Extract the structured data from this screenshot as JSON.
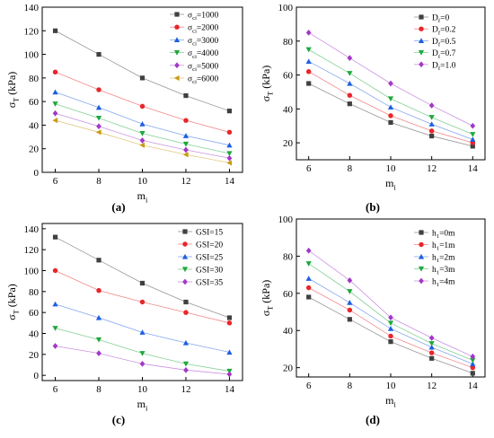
{
  "chart_data": [
    {
      "type": "line",
      "panel_label": "(a)",
      "xlabel": "m",
      "xlabel_sub": "i",
      "ylabel": "σ",
      "ylabel_sub": "T",
      "ylabel_unit": " (kPa)",
      "xlim": [
        5.4,
        14.6
      ],
      "ylim": [
        0,
        140
      ],
      "xticks": [
        6,
        8,
        10,
        12,
        14
      ],
      "yticks": [
        0,
        20,
        40,
        60,
        80,
        100,
        120,
        140
      ],
      "legend_position": "top-right",
      "x": [
        6,
        8,
        10,
        12,
        14
      ],
      "series": [
        {
          "name_main": "σ",
          "name_sub": "ci",
          "name_tail": "=1000",
          "color": "#404040",
          "marker": "square",
          "values": [
            120,
            100,
            80,
            65,
            52
          ]
        },
        {
          "name_main": "σ",
          "name_sub": "ci",
          "name_tail": "=2000",
          "color": "#e8262b",
          "marker": "circle",
          "values": [
            85,
            70,
            56,
            44,
            34
          ]
        },
        {
          "name_main": "σ",
          "name_sub": "ci",
          "name_tail": "=3000",
          "color": "#1e5fe0",
          "marker": "triangle-up",
          "values": [
            68,
            55,
            41,
            31,
            23
          ]
        },
        {
          "name_main": "σ",
          "name_sub": "ci",
          "name_tail": "=4000",
          "color": "#1ea83c",
          "marker": "triangle-down",
          "values": [
            58,
            46,
            33,
            24,
            16
          ]
        },
        {
          "name_main": "σ",
          "name_sub": "ci",
          "name_tail": "=5000",
          "color": "#a238c8",
          "marker": "diamond",
          "values": [
            50,
            39,
            27,
            19,
            12
          ]
        },
        {
          "name_main": "σ",
          "name_sub": "ci",
          "name_tail": "=6000",
          "color": "#c89a10",
          "marker": "triangle-left",
          "values": [
            44,
            34,
            23,
            15,
            8
          ]
        }
      ]
    },
    {
      "type": "line",
      "panel_label": "(b)",
      "xlabel": "m",
      "xlabel_sub": "i",
      "ylabel": "σ",
      "ylabel_sub": "T",
      "ylabel_unit": " (kPa)",
      "xlim": [
        5.4,
        14.6
      ],
      "ylim": [
        10,
        100
      ],
      "xticks": [
        6,
        8,
        10,
        12,
        14
      ],
      "yticks": [
        20,
        40,
        60,
        80,
        100
      ],
      "legend_position": "top-right",
      "x": [
        6,
        8,
        10,
        12,
        14
      ],
      "series": [
        {
          "name_main": "D",
          "name_sub": "f",
          "name_tail": "=0",
          "color": "#404040",
          "marker": "square",
          "values": [
            55,
            43,
            32,
            24,
            18
          ]
        },
        {
          "name_main": "D",
          "name_sub": "f",
          "name_tail": "=0.2",
          "color": "#e8262b",
          "marker": "circle",
          "values": [
            62,
            48,
            36,
            27,
            20
          ]
        },
        {
          "name_main": "D",
          "name_sub": "f",
          "name_tail": "=0.5",
          "color": "#1e5fe0",
          "marker": "triangle-up",
          "values": [
            68,
            55,
            41,
            31,
            22
          ]
        },
        {
          "name_main": "D",
          "name_sub": "f",
          "name_tail": "=0.7",
          "color": "#1ea83c",
          "marker": "triangle-down",
          "values": [
            75,
            61,
            46,
            35,
            25
          ]
        },
        {
          "name_main": "D",
          "name_sub": "f",
          "name_tail": "=1.0",
          "color": "#a238c8",
          "marker": "diamond",
          "values": [
            85,
            70,
            55,
            42,
            30
          ]
        }
      ]
    },
    {
      "type": "line",
      "panel_label": "(c)",
      "xlabel": "m",
      "xlabel_sub": "i",
      "ylabel": "σ",
      "ylabel_sub": "T",
      "ylabel_unit": " (kPa)",
      "xlim": [
        5.4,
        14.6
      ],
      "ylim": [
        -5,
        145
      ],
      "xticks": [
        6,
        8,
        10,
        12,
        14
      ],
      "yticks": [
        0,
        20,
        40,
        60,
        80,
        100,
        120,
        140
      ],
      "legend_position": "top-right",
      "x": [
        6,
        8,
        10,
        12,
        14
      ],
      "series": [
        {
          "name_main": "GSI=15",
          "name_sub": "",
          "name_tail": "",
          "color": "#404040",
          "marker": "square",
          "values": [
            132,
            110,
            88,
            70,
            55
          ]
        },
        {
          "name_main": "GSI=20",
          "name_sub": "",
          "name_tail": "",
          "color": "#e8262b",
          "marker": "circle",
          "values": [
            100,
            81,
            70,
            60,
            50
          ]
        },
        {
          "name_main": "GSI=25",
          "name_sub": "",
          "name_tail": "",
          "color": "#1e5fe0",
          "marker": "triangle-up",
          "values": [
            68,
            55,
            41,
            31,
            22
          ]
        },
        {
          "name_main": "GSI=30",
          "name_sub": "",
          "name_tail": "",
          "color": "#1ea83c",
          "marker": "triangle-down",
          "values": [
            45,
            34,
            21,
            11,
            4
          ]
        },
        {
          "name_main": "GSI=35",
          "name_sub": "",
          "name_tail": "",
          "color": "#a238c8",
          "marker": "diamond",
          "values": [
            28,
            21,
            11,
            5,
            1
          ]
        }
      ]
    },
    {
      "type": "line",
      "panel_label": "(d)",
      "xlabel": "m",
      "xlabel_sub": "i",
      "ylabel": "σ",
      "ylabel_sub": "T",
      "ylabel_unit": " (kPa)",
      "xlim": [
        5.4,
        14.6
      ],
      "ylim": [
        15,
        100
      ],
      "xticks": [
        6,
        8,
        10,
        12,
        14
      ],
      "yticks": [
        20,
        40,
        60,
        80,
        100
      ],
      "legend_position": "top-right",
      "x": [
        6,
        8,
        10,
        12,
        14
      ],
      "series": [
        {
          "name_main": "h",
          "name_sub": "1",
          "name_tail": "=0m",
          "color": "#404040",
          "marker": "square",
          "values": [
            58,
            46,
            34,
            25,
            17
          ]
        },
        {
          "name_main": "h",
          "name_sub": "1",
          "name_tail": "=1m",
          "color": "#e8262b",
          "marker": "circle",
          "values": [
            63,
            51,
            37,
            28,
            20
          ]
        },
        {
          "name_main": "h",
          "name_sub": "1",
          "name_tail": "=2m",
          "color": "#1e5fe0",
          "marker": "triangle-up",
          "values": [
            68,
            55,
            41,
            31,
            22
          ]
        },
        {
          "name_main": "h",
          "name_sub": "1",
          "name_tail": "=3m",
          "color": "#1ea83c",
          "marker": "triangle-down",
          "values": [
            76,
            61,
            44,
            33,
            24
          ]
        },
        {
          "name_main": "h",
          "name_sub": "1",
          "name_tail": "=4m",
          "color": "#a238c8",
          "marker": "diamond",
          "values": [
            83,
            67,
            47,
            36,
            26
          ]
        }
      ]
    }
  ]
}
